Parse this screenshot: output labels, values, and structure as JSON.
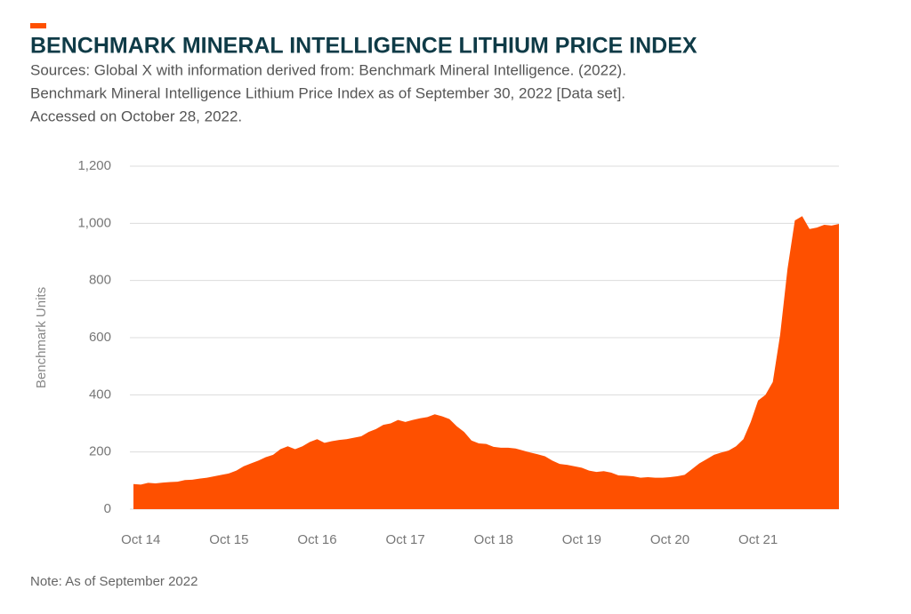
{
  "chart_data": {
    "type": "area",
    "title": "BENCHMARK MINERAL INTELLIGENCE LITHIUM PRICE INDEX",
    "subtitle": [
      "Sources: Global X with information derived from: Benchmark Mineral Intelligence. (2022).",
      "Benchmark Mineral Intelligence Lithium Price Index as of September 30, 2022 [Data set].",
      "Accessed on October 28, 2022."
    ],
    "y_label": "Benchmark Units",
    "note": "Note: As of September 2022",
    "color": "#fe5000",
    "grid": true,
    "categories": [
      null,
      "Oct 14",
      null,
      null,
      null,
      null,
      null,
      null,
      null,
      null,
      null,
      null,
      null,
      "Oct 15",
      null,
      null,
      null,
      null,
      null,
      null,
      null,
      null,
      null,
      null,
      null,
      "Oct 16",
      null,
      null,
      null,
      null,
      null,
      null,
      null,
      null,
      null,
      null,
      null,
      "Oct 17",
      null,
      null,
      null,
      null,
      null,
      null,
      null,
      null,
      null,
      null,
      null,
      "Oct 18",
      null,
      null,
      null,
      null,
      null,
      null,
      null,
      null,
      null,
      null,
      null,
      "Oct 19",
      null,
      null,
      null,
      null,
      null,
      null,
      null,
      null,
      null,
      null,
      null,
      "Oct 20",
      null,
      null,
      null,
      null,
      null,
      null,
      null,
      null,
      null,
      null,
      null,
      "Oct 21",
      null,
      null,
      null,
      null,
      null,
      null,
      null,
      null,
      null,
      null,
      null
    ],
    "values": [
      88,
      86,
      92,
      90,
      93,
      95,
      96,
      102,
      103,
      107,
      110,
      115,
      120,
      125,
      135,
      150,
      160,
      170,
      182,
      190,
      210,
      220,
      210,
      220,
      235,
      245,
      232,
      238,
      242,
      245,
      250,
      255,
      270,
      280,
      295,
      300,
      312,
      305,
      312,
      318,
      322,
      332,
      325,
      315,
      290,
      270,
      240,
      230,
      228,
      218,
      215,
      215,
      212,
      205,
      198,
      192,
      185,
      170,
      158,
      155,
      150,
      145,
      135,
      130,
      133,
      128,
      118,
      117,
      115,
      110,
      112,
      110,
      110,
      112,
      115,
      120,
      140,
      160,
      175,
      190,
      198,
      205,
      220,
      245,
      305,
      380,
      400,
      445,
      610,
      840,
      1010,
      1025,
      980,
      985,
      995,
      992,
      998
    ],
    "ylim": [
      0,
      1200
    ],
    "yticks": [
      0,
      200,
      400,
      600,
      800,
      {
        "value": 1000,
        "label": "1,000"
      },
      {
        "value": 1200,
        "label": "1,200"
      }
    ]
  }
}
